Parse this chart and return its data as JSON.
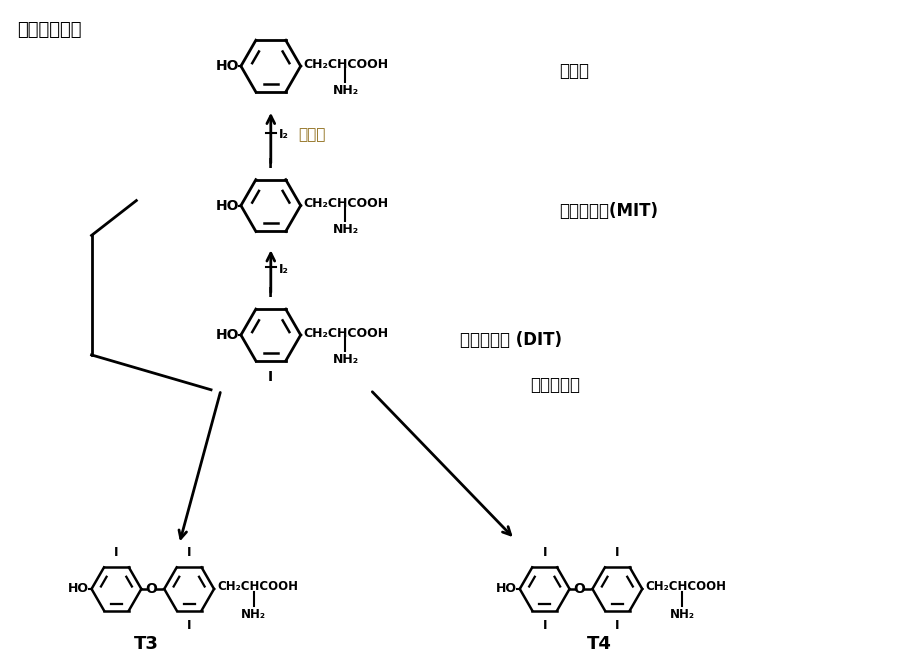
{
  "bg_color": "#ffffff",
  "highlight_color": "#8B6914",
  "figsize": [
    9.24,
    6.72
  ],
  "dpi": 100,
  "header": "（见下图）。",
  "label_tyr": "酪氨酸",
  "label_mit": "一碹酪氨酸(MIT)",
  "label_dit": "二碹酪氨酸 (DIT)",
  "label_polymerize": "二分子聚合",
  "label_iodine": "碹单质",
  "label_T3": "T3",
  "label_T4": "T4"
}
